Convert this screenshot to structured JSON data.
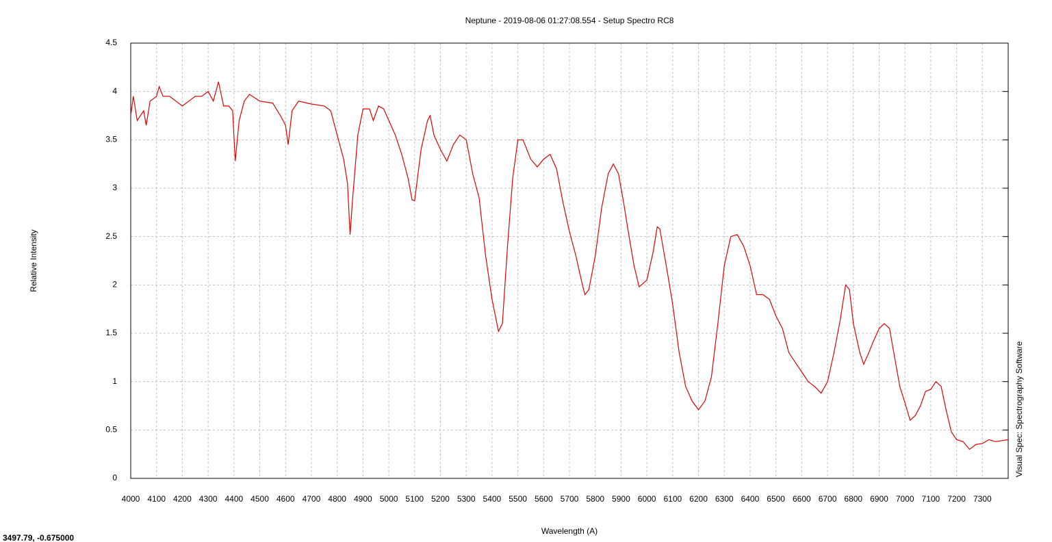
{
  "chart_data": {
    "type": "line",
    "title": "Neptune - 2019-08-06 01:27:08.554 - Setup Spectro RC8",
    "x_label": "Wavelength (A)",
    "y_label": "Relative Intensity",
    "side_note": "Visual Spec: Spectrography Software",
    "status": "3497.79, -0.675000",
    "color": "#e00000",
    "grid": true,
    "xlim": [
      4000,
      7400
    ],
    "ylim": [
      0,
      4.5
    ],
    "xticks": [
      4000,
      4100,
      4200,
      4300,
      4400,
      4500,
      4600,
      4700,
      4800,
      4900,
      5000,
      5100,
      5200,
      5300,
      5400,
      5500,
      5600,
      5700,
      5800,
      5900,
      6000,
      6100,
      6200,
      6300,
      6400,
      6500,
      6600,
      6700,
      6800,
      6900,
      7000,
      7100,
      7200,
      7300
    ],
    "yticks": [
      0,
      0.5,
      1,
      1.5,
      2,
      2.5,
      3,
      3.5,
      4,
      4.5
    ],
    "x": [
      4000,
      4010,
      4025,
      4050,
      4060,
      4075,
      4100,
      4110,
      4125,
      4150,
      4175,
      4200,
      4225,
      4250,
      4275,
      4300,
      4320,
      4340,
      4360,
      4380,
      4395,
      4405,
      4420,
      4440,
      4460,
      4500,
      4550,
      4580,
      4600,
      4610,
      4625,
      4650,
      4700,
      4750,
      4775,
      4800,
      4825,
      4840,
      4850,
      4860,
      4880,
      4900,
      4925,
      4940,
      4960,
      4980,
      5000,
      5025,
      5050,
      5075,
      5090,
      5100,
      5125,
      5150,
      5160,
      5175,
      5200,
      5225,
      5250,
      5275,
      5300,
      5325,
      5350,
      5375,
      5400,
      5425,
      5440,
      5460,
      5480,
      5500,
      5520,
      5550,
      5575,
      5600,
      5625,
      5650,
      5675,
      5700,
      5725,
      5750,
      5760,
      5775,
      5800,
      5825,
      5850,
      5870,
      5890,
      5910,
      5925,
      5950,
      5970,
      6000,
      6025,
      6040,
      6050,
      6075,
      6100,
      6125,
      6150,
      6175,
      6200,
      6225,
      6250,
      6275,
      6300,
      6325,
      6350,
      6375,
      6400,
      6425,
      6450,
      6475,
      6500,
      6525,
      6550,
      6575,
      6600,
      6625,
      6650,
      6675,
      6700,
      6725,
      6750,
      6770,
      6785,
      6800,
      6825,
      6840,
      6860,
      6875,
      6900,
      6920,
      6940,
      6960,
      6980,
      7000,
      7020,
      7040,
      7060,
      7080,
      7100,
      7120,
      7140,
      7160,
      7180,
      7200,
      7225,
      7250,
      7275,
      7300,
      7325,
      7350,
      7400
    ],
    "values": [
      3.75,
      3.95,
      3.7,
      3.8,
      3.65,
      3.9,
      3.95,
      4.05,
      3.95,
      3.95,
      3.9,
      3.85,
      3.9,
      3.95,
      3.95,
      4.0,
      3.9,
      4.1,
      3.85,
      3.85,
      3.8,
      3.28,
      3.7,
      3.9,
      3.97,
      3.9,
      3.88,
      3.75,
      3.65,
      3.45,
      3.8,
      3.9,
      3.87,
      3.85,
      3.8,
      3.55,
      3.3,
      3.05,
      2.52,
      2.9,
      3.55,
      3.82,
      3.82,
      3.7,
      3.85,
      3.82,
      3.7,
      3.55,
      3.35,
      3.1,
      2.88,
      2.87,
      3.4,
      3.7,
      3.75,
      3.55,
      3.4,
      3.28,
      3.45,
      3.55,
      3.5,
      3.15,
      2.9,
      2.3,
      1.85,
      1.52,
      1.6,
      2.4,
      3.1,
      3.5,
      3.5,
      3.3,
      3.22,
      3.3,
      3.35,
      3.2,
      2.85,
      2.55,
      2.3,
      2.0,
      1.9,
      1.95,
      2.3,
      2.8,
      3.15,
      3.25,
      3.15,
      2.85,
      2.6,
      2.2,
      1.98,
      2.05,
      2.35,
      2.6,
      2.58,
      2.2,
      1.8,
      1.3,
      0.95,
      0.8,
      0.71,
      0.8,
      1.05,
      1.6,
      2.2,
      2.5,
      2.52,
      2.4,
      2.2,
      1.9,
      1.9,
      1.85,
      1.68,
      1.55,
      1.3,
      1.2,
      1.1,
      1.0,
      0.95,
      0.88,
      1.0,
      1.3,
      1.65,
      2.0,
      1.95,
      1.6,
      1.3,
      1.18,
      1.3,
      1.4,
      1.55,
      1.6,
      1.55,
      1.25,
      0.95,
      0.78,
      0.6,
      0.65,
      0.75,
      0.9,
      0.92,
      1.0,
      0.95,
      0.7,
      0.48,
      0.4,
      0.38,
      0.3,
      0.35,
      0.36,
      0.4,
      0.38,
      0.4
    ]
  }
}
